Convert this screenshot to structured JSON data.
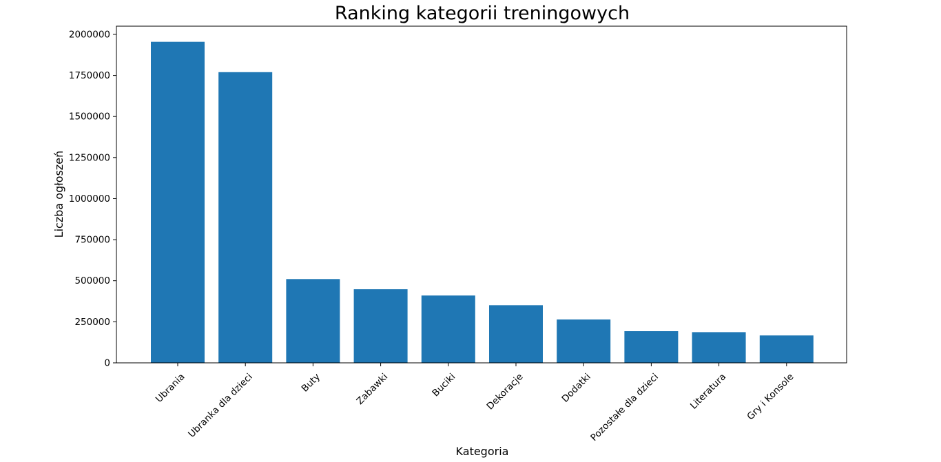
{
  "chart_data": {
    "type": "bar",
    "title": "Ranking kategorii treningowych",
    "xlabel": "Kategoria",
    "ylabel": "Liczba ogłoszeń",
    "categories": [
      "Ubrania",
      "Ubranka dla dzieci",
      "Buty",
      "Zabawki",
      "Buciki",
      "Dekoracje",
      "Dodatki",
      "Pozostałe dla dzieci",
      "Literatura",
      "Gry i Konsole"
    ],
    "values": [
      1955000,
      1770000,
      510000,
      448000,
      410000,
      351000,
      264000,
      193000,
      187000,
      167000
    ],
    "ylim": [
      0,
      2050000
    ],
    "yticks": [
      0,
      250000,
      500000,
      750000,
      1000000,
      1250000,
      1500000,
      1750000,
      2000000
    ],
    "ytick_labels": [
      "0",
      "250000",
      "500000",
      "750000",
      "1000000",
      "1250000",
      "1500000",
      "1750000",
      "2000000"
    ],
    "bar_color": "#1f77b4",
    "grid": false,
    "legend": false
  }
}
